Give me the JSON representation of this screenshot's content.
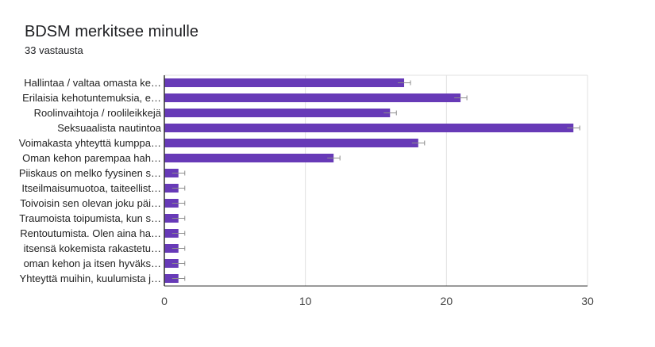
{
  "header": {
    "title": "BDSM merkitsee minulle",
    "subtitle": "33 vastausta"
  },
  "chart_data": {
    "type": "bar",
    "orientation": "horizontal",
    "title": "BDSM merkitsee minulle",
    "subtitle": "33 vastausta",
    "categories": [
      "Hallintaa / valtaa omasta ke…",
      "Erilaisia kehotuntemuksia, e…",
      "Roolinvaihtoja / roolileikkejä",
      "Seksuaalista nautintoa",
      "Voimakasta yhteyttä kumppa…",
      "Oman kehon parempaa hah…",
      "Piiskaus on melko fyysinen s…",
      "Itseilmaisumuotoa, taiteellist…",
      "Toivoisin sen olevan joku päi…",
      "Traumoista toipumista, kun s…",
      "Rentoutumista. Olen aina ha…",
      "itsensä kokemista rakastetu…",
      "oman kehon ja itsen hyväks…",
      "Yhteyttä muihin, kuulumista j…"
    ],
    "values": [
      17,
      21,
      16,
      29,
      18,
      12,
      1,
      1,
      1,
      1,
      1,
      1,
      1,
      1
    ],
    "xlim": [
      0,
      30
    ],
    "xticks": [
      0,
      10,
      20,
      30
    ],
    "grid": true,
    "error_bars": true,
    "xlabel": "",
    "ylabel": ""
  },
  "colors": {
    "bar": "#673ab7",
    "grid": "#e0e0e0",
    "axis": "#333333",
    "error_bar": "#8d8d8d"
  }
}
